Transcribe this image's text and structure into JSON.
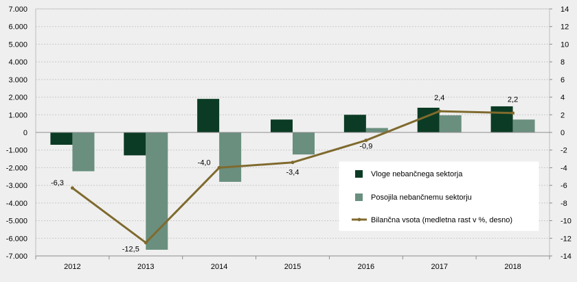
{
  "chart_data": {
    "type": "bar",
    "categories": [
      "2012",
      "2013",
      "2014",
      "2015",
      "2016",
      "2017",
      "2018"
    ],
    "series": [
      {
        "name": "Vloge nebančnega sektorja",
        "type": "bar",
        "axis": "left",
        "color": "#0b3b24",
        "values": [
          -700,
          -1300,
          1900,
          730,
          1000,
          1400,
          1480
        ]
      },
      {
        "name": "Posojila nebančnemu sektorju",
        "type": "bar",
        "axis": "left",
        "color": "#6a8f7f",
        "values": [
          -2200,
          -6650,
          -2800,
          -1250,
          250,
          970,
          730
        ]
      },
      {
        "name": "Bilančna vsota (medletna rast v %, desno)",
        "type": "line",
        "axis": "right",
        "color": "#7f6a2e",
        "values": [
          -6.3,
          -12.5,
          -4.0,
          -3.4,
          -0.9,
          2.4,
          2.2
        ],
        "labels": [
          "-6,3",
          "-12,5",
          "-4,0",
          "-3,4",
          "-0,9",
          "2,4",
          "2,2"
        ]
      }
    ],
    "y_left": {
      "ylim": [
        -7000,
        7000
      ],
      "ticks": [
        7000,
        6000,
        5000,
        4000,
        3000,
        2000,
        1000,
        0,
        -1000,
        -2000,
        -3000,
        -4000,
        -5000,
        -6000,
        -7000
      ],
      "tick_labels": [
        "7.000",
        "6.000",
        "5.000",
        "4.000",
        "3.000",
        "2.000",
        "1.000",
        "0",
        "-1.000",
        "-2.000",
        "-3.000",
        "-4.000",
        "-5.000",
        "-6.000",
        "-7.000"
      ]
    },
    "y_right": {
      "ylim": [
        -14,
        14
      ],
      "ticks": [
        14,
        12,
        10,
        8,
        6,
        4,
        2,
        0,
        -2,
        -4,
        -6,
        -8,
        -10,
        -12,
        -14
      ],
      "tick_labels": [
        "14",
        "12",
        "10",
        "8",
        "6",
        "4",
        "2",
        "0",
        "-2",
        "-4",
        "-6",
        "-8",
        "-10",
        "-12",
        "-14"
      ]
    },
    "grid": true,
    "legend_position": "lower-right",
    "legend": [
      "Vloge nebančnega sektorja",
      "Posojila nebančnemu sektorju",
      "Bilančna vsota (medletna rast v %, desno)"
    ]
  }
}
